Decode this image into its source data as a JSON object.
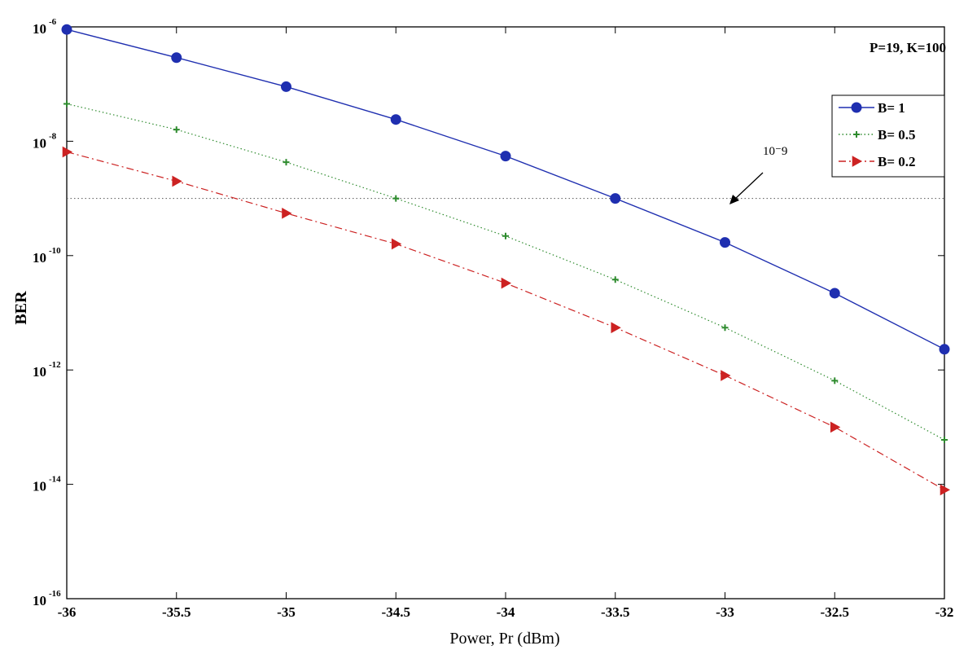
{
  "chart_data": {
    "type": "line",
    "title": "",
    "xlabel": "Power, Pr (dBm)",
    "ylabel": "BER",
    "y_scale": "log",
    "xlim": [
      -36,
      -32
    ],
    "ylim": [
      1e-16,
      1e-06
    ],
    "x_ticks": [
      -36,
      -35.5,
      -35,
      -34.5,
      -34,
      -33.5,
      -33,
      -32.5,
      -32
    ],
    "x_tick_labels": [
      "-36",
      "-35.5",
      "-35",
      "-34.5",
      "-34",
      "-33.5",
      "-33",
      "-32.5",
      "-32"
    ],
    "y_ticks": [
      {
        "value": 1e-06,
        "base": "10",
        "exp": "-6"
      },
      {
        "value": 1e-08,
        "base": "10",
        "exp": "-8"
      },
      {
        "value": 1e-10,
        "base": "10",
        "exp": "-10"
      },
      {
        "value": 1e-12,
        "base": "10",
        "exp": "-12"
      },
      {
        "value": 1e-14,
        "base": "10",
        "exp": "-14"
      },
      {
        "value": 1e-16,
        "base": "10",
        "exp": "-16"
      }
    ],
    "grid": false,
    "legend_position": "top-right",
    "annotation": "P=19, K=100",
    "reference_line": {
      "y": 1e-09,
      "label": "10⁻9"
    },
    "x": [
      -36,
      -35.5,
      -35,
      -34.5,
      -34,
      -33.5,
      -33,
      -32.5,
      -32
    ],
    "series": [
      {
        "name": "B= 1",
        "color": "#1f2fb0",
        "line_style": "solid",
        "marker": "circle",
        "values": [
          9e-07,
          2.9e-07,
          9e-08,
          2.4e-08,
          5.5e-09,
          1e-09,
          1.7e-10,
          2.2e-11,
          2.3e-12
        ]
      },
      {
        "name": "B= 0.5",
        "color": "#2e8b2e",
        "line_style": "dotted",
        "marker": "plus",
        "values": [
          4.5e-08,
          1.6e-08,
          4.3e-09,
          1e-09,
          2.2e-10,
          3.8e-11,
          5.5e-12,
          6.5e-13,
          6e-14
        ]
      },
      {
        "name": "B= 0.2",
        "color": "#cc2222",
        "line_style": "dashdot",
        "marker": "triangle-right",
        "values": [
          6.5e-09,
          2e-09,
          5.5e-10,
          1.6e-10,
          3.3e-11,
          5.5e-12,
          8e-13,
          1e-13,
          8e-15
        ]
      }
    ]
  }
}
